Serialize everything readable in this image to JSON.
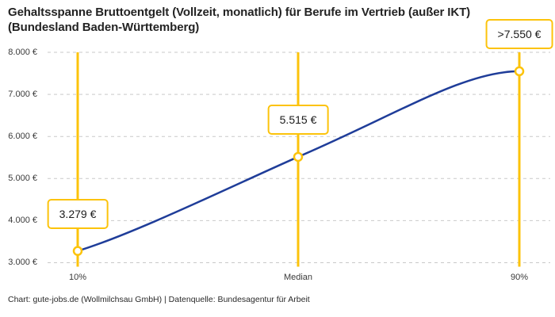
{
  "header": {
    "title_line1": "Gehaltsspanne Bruttoentgelt (Vollzeit, monatlich) für Berufe im Vertrieb (außer IKT)",
    "title_line2": "(Bundesland Baden-Württemberg)"
  },
  "footer": {
    "credit": "Chart: gute-jobs.de (Wollmilchsau GmbH) | Datenquelle: Bundesagentur für Arbeit"
  },
  "colors": {
    "accent_yellow": "#FCC30B",
    "line_blue": "#1F3D99",
    "grid_gray": "#C9C9C9",
    "title_text": "#232323",
    "tick_text": "#3A3A3A",
    "label_text": "#1B1B1B",
    "background": "#FFFFFF"
  },
  "chart_data": {
    "type": "line",
    "title": "Gehaltsspanne Bruttoentgelt (Vollzeit, monatlich) für Berufe im Vertrieb (außer IKT) (Bundesland Baden-Württemberg)",
    "categories": [
      "10%",
      "Median",
      "90%"
    ],
    "values": [
      3279,
      5515,
      7550
    ],
    "point_labels": [
      "3.279 €",
      "5.515 €",
      ">7.550 €"
    ],
    "y_ticks": [
      {
        "value": 8000,
        "label": "8.000 €"
      },
      {
        "value": 7000,
        "label": "7.000 €"
      },
      {
        "value": 6000,
        "label": "6.000 €"
      },
      {
        "value": 5000,
        "label": "5.000 €"
      },
      {
        "value": 4000,
        "label": "4.000 €"
      },
      {
        "value": 3000,
        "label": "3.000 €"
      }
    ],
    "ylim": [
      3000,
      8000
    ],
    "xlabel": "",
    "ylabel": "",
    "grid": "horizontal-dashed",
    "legend": "none",
    "marker_style": "open-circle",
    "source": "Bundesagentur für Arbeit"
  }
}
